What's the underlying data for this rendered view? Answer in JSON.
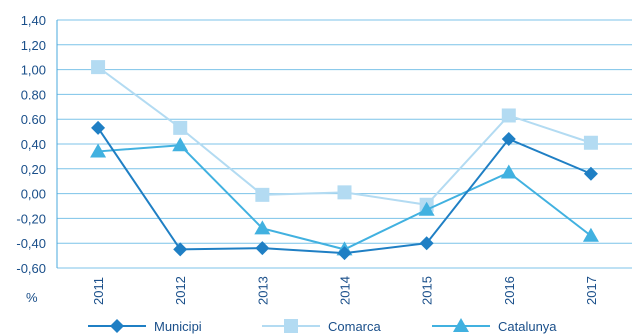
{
  "chart_data": {
    "type": "line",
    "categories": [
      "2011",
      "2012",
      "2013",
      "2014",
      "2015",
      "2016",
      "2017"
    ],
    "ylabel": "%",
    "ylim": [
      -0.6,
      1.4
    ],
    "yticks": [
      "1,40",
      "1,20",
      "1,00",
      "0.80",
      "0.60",
      "0,40",
      "0,20",
      "0,00",
      "-0,20",
      "-0,40",
      "-0,60"
    ],
    "ytick_values": [
      1.4,
      1.2,
      1.0,
      0.8,
      0.6,
      0.4,
      0.2,
      0.0,
      -0.2,
      -0.4,
      -0.6
    ],
    "grid": "horizontal",
    "legend_position": "bottom",
    "series": [
      {
        "name": "Municipi",
        "color": "#1f7fc4",
        "marker": "diamond",
        "values": [
          0.53,
          -0.45,
          -0.44,
          -0.48,
          -0.4,
          0.44,
          0.16
        ]
      },
      {
        "name": "Comarca",
        "color": "#b3dbf2",
        "marker": "square",
        "values": [
          1.02,
          0.53,
          -0.01,
          0.01,
          -0.09,
          0.63,
          0.41
        ]
      },
      {
        "name": "Catalunya",
        "color": "#41b1e0",
        "marker": "triangle",
        "values": [
          0.34,
          0.39,
          -0.28,
          -0.45,
          -0.13,
          0.17,
          -0.34
        ]
      }
    ]
  }
}
